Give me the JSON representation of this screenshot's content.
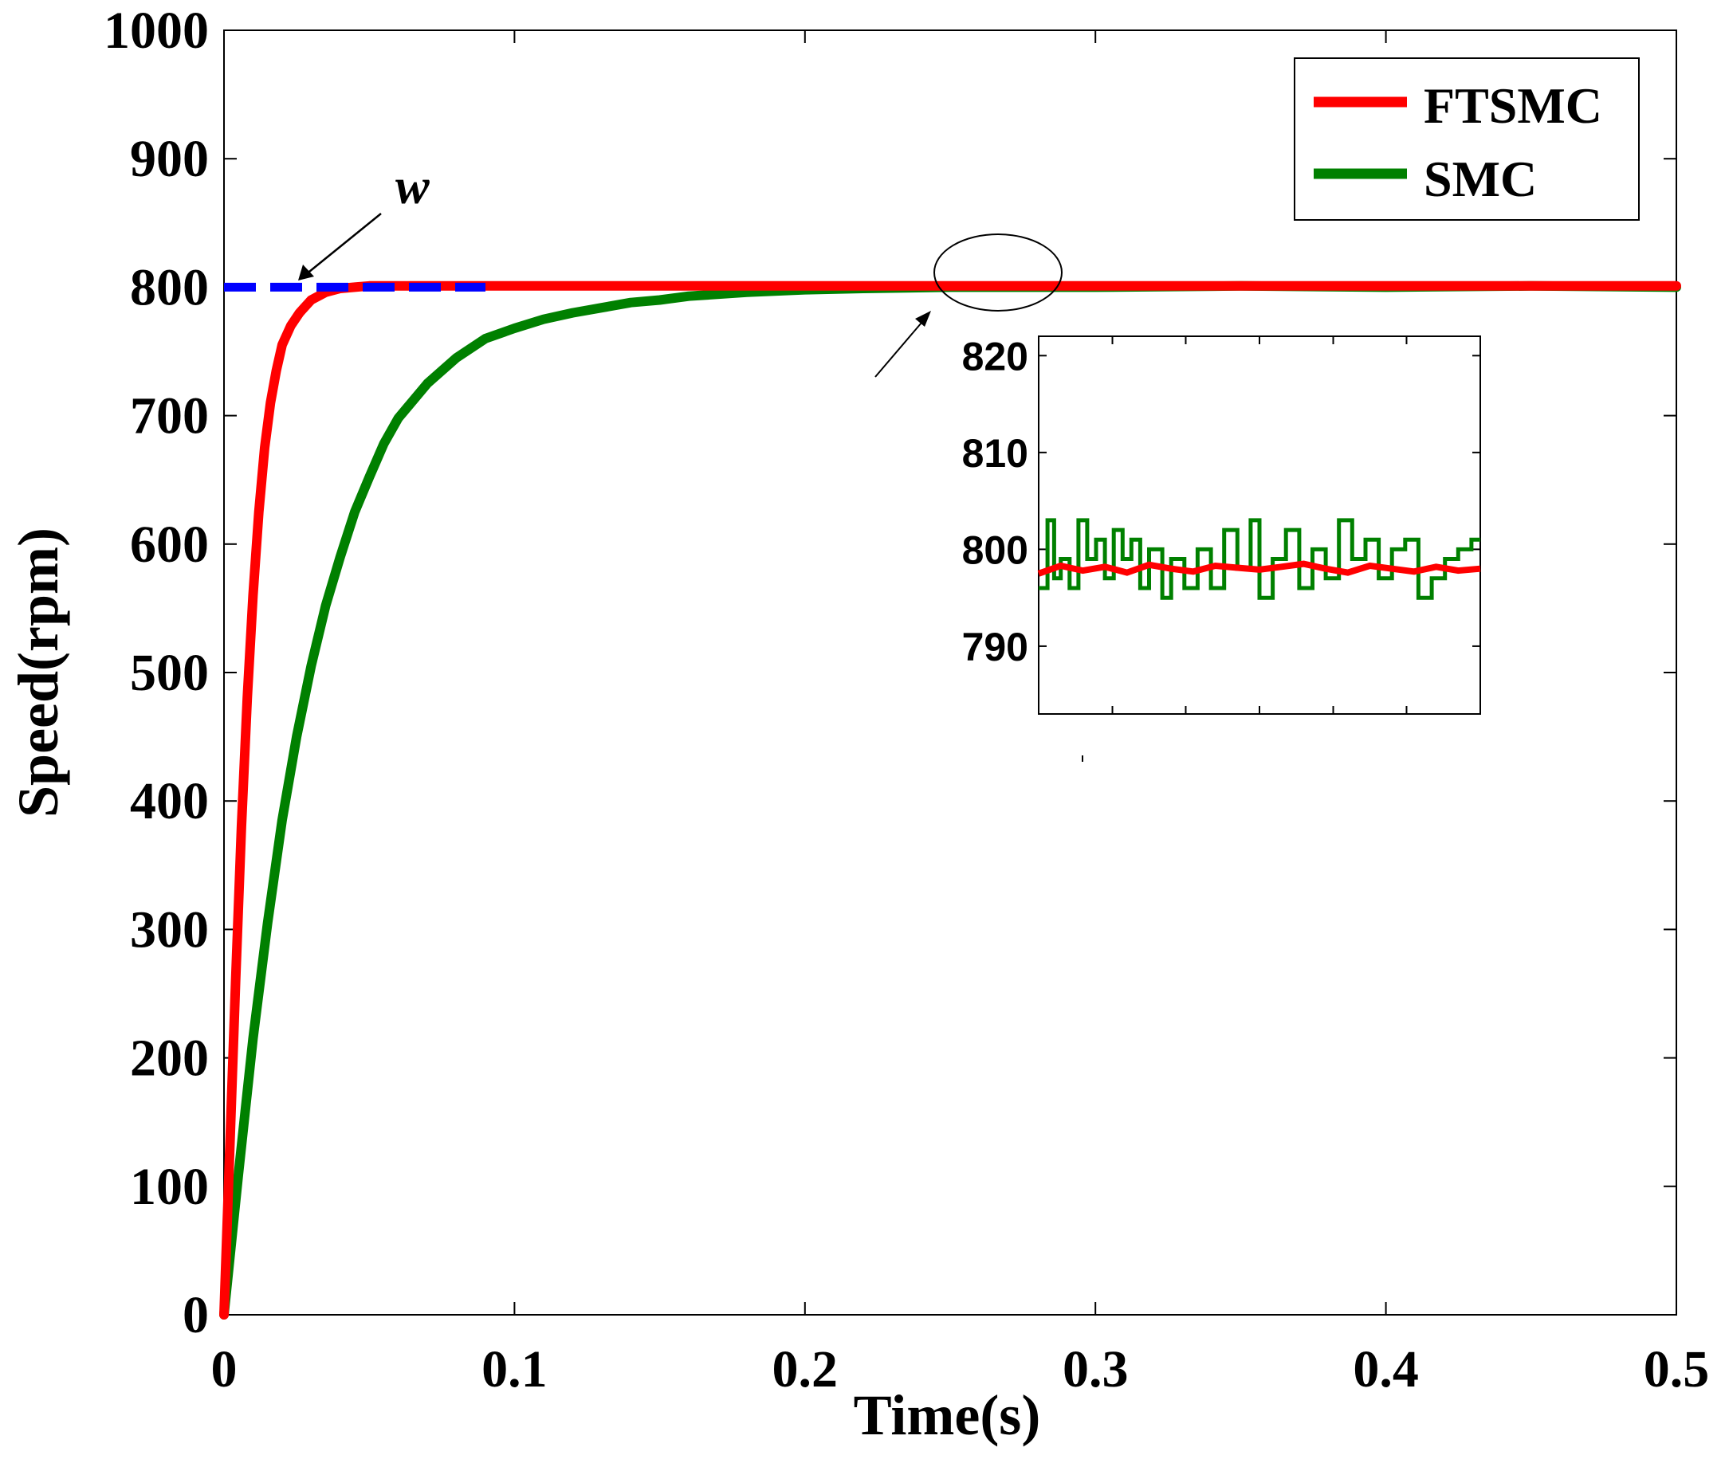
{
  "chart_data": {
    "type": "line",
    "xlabel": "Time(s)",
    "ylabel": "Speed(rpm)",
    "xlim": [
      0,
      0.5
    ],
    "ylim": [
      0,
      1000
    ],
    "xticks": [
      0,
      0.1,
      0.2,
      0.3,
      0.4,
      0.5
    ],
    "xtick_labels": [
      "0",
      "0.1",
      "0.2",
      "0.3",
      "0.4",
      "0.5"
    ],
    "yticks": [
      0,
      100,
      200,
      300,
      400,
      500,
      600,
      700,
      800,
      900,
      1000
    ],
    "ytick_labels": [
      "0",
      "100",
      "200",
      "300",
      "400",
      "500",
      "600",
      "700",
      "800",
      "900",
      "1000"
    ],
    "legend_position": "top-right",
    "series": [
      {
        "name": "FTSMC",
        "color": "#ff0000",
        "x": [
          0,
          0.002,
          0.004,
          0.006,
          0.008,
          0.01,
          0.012,
          0.014,
          0.016,
          0.018,
          0.02,
          0.023,
          0.026,
          0.03,
          0.035,
          0.04,
          0.045,
          0.05,
          0.06,
          0.08,
          0.1,
          0.15,
          0.2,
          0.25,
          0.3,
          0.35,
          0.4,
          0.45,
          0.5
        ],
        "y": [
          0,
          130,
          260,
          380,
          480,
          560,
          625,
          675,
          710,
          735,
          755,
          770,
          780,
          790,
          796,
          799,
          800,
          801,
          801,
          801,
          801,
          801,
          801,
          801,
          801,
          801,
          801,
          801,
          801
        ]
      },
      {
        "name": "SMC",
        "color": "#008000",
        "x": [
          0,
          0.005,
          0.01,
          0.015,
          0.02,
          0.025,
          0.03,
          0.035,
          0.04,
          0.045,
          0.05,
          0.055,
          0.06,
          0.07,
          0.08,
          0.09,
          0.1,
          0.11,
          0.12,
          0.13,
          0.14,
          0.15,
          0.16,
          0.18,
          0.2,
          0.22,
          0.25,
          0.3,
          0.35,
          0.4,
          0.45,
          0.5
        ],
        "y": [
          0,
          110,
          215,
          305,
          385,
          450,
          505,
          552,
          590,
          625,
          652,
          678,
          698,
          725,
          745,
          760,
          768,
          775,
          780,
          784,
          788,
          790,
          793,
          796,
          798,
          799,
          800,
          800,
          801,
          800,
          801,
          800
        ]
      },
      {
        "name": "w",
        "color": "#0000ff",
        "style": "dashed",
        "x": [
          0,
          0.09
        ],
        "y": [
          800,
          800
        ]
      }
    ],
    "annotations": [
      {
        "text": "w",
        "target_x": 0.025,
        "target_y": 800
      }
    ],
    "inset": {
      "ylim": [
        783,
        822
      ],
      "yticks": [
        790,
        800,
        810,
        820
      ],
      "ytick_labels": [
        "790",
        "800",
        "810",
        "820"
      ],
      "xlim": [
        0,
        1
      ],
      "xticks": [
        0.167,
        0.333,
        0.5,
        0.667,
        0.833
      ],
      "highlight": {
        "x": 0.268,
        "y": 802
      },
      "series": [
        {
          "name": "FTSMC",
          "color": "#ff0000",
          "x": [
            0,
            0.05,
            0.1,
            0.15,
            0.2,
            0.25,
            0.3,
            0.35,
            0.4,
            0.45,
            0.5,
            0.55,
            0.6,
            0.65,
            0.7,
            0.75,
            0.8,
            0.85,
            0.9,
            0.95,
            1.0
          ],
          "y": [
            797.5,
            798.3,
            797.8,
            798.2,
            797.6,
            798.4,
            798.0,
            797.7,
            798.3,
            798.1,
            797.9,
            798.2,
            798.5,
            798.0,
            797.6,
            798.3,
            798.0,
            797.7,
            798.2,
            797.8,
            798.0
          ]
        },
        {
          "name": "SMC",
          "color": "#008000",
          "x": [
            0,
            0.02,
            0.02,
            0.035,
            0.035,
            0.05,
            0.05,
            0.07,
            0.07,
            0.09,
            0.09,
            0.11,
            0.11,
            0.13,
            0.13,
            0.15,
            0.15,
            0.17,
            0.17,
            0.19,
            0.19,
            0.21,
            0.21,
            0.23,
            0.23,
            0.25,
            0.25,
            0.28,
            0.28,
            0.3,
            0.3,
            0.33,
            0.33,
            0.36,
            0.36,
            0.39,
            0.39,
            0.42,
            0.42,
            0.45,
            0.45,
            0.48,
            0.48,
            0.5,
            0.5,
            0.53,
            0.53,
            0.56,
            0.56,
            0.59,
            0.59,
            0.62,
            0.62,
            0.65,
            0.65,
            0.68,
            0.68,
            0.71,
            0.71,
            0.74,
            0.74,
            0.77,
            0.77,
            0.8,
            0.8,
            0.83,
            0.83,
            0.86,
            0.86,
            0.89,
            0.89,
            0.92,
            0.92,
            0.95,
            0.95,
            0.98,
            0.98,
            1.0
          ],
          "y": [
            796,
            796,
            803,
            803,
            797,
            797,
            799,
            799,
            796,
            796,
            803,
            803,
            799,
            799,
            801,
            801,
            797,
            797,
            802,
            802,
            799,
            799,
            801,
            801,
            796,
            796,
            800,
            800,
            795,
            795,
            799,
            799,
            796,
            796,
            800,
            800,
            796,
            796,
            802,
            802,
            798,
            798,
            803,
            803,
            795,
            795,
            799,
            799,
            802,
            802,
            796,
            796,
            800,
            800,
            797,
            797,
            803,
            803,
            799,
            799,
            801,
            801,
            797,
            797,
            800,
            800,
            801,
            801,
            795,
            795,
            797,
            797,
            799,
            799,
            800,
            800,
            801,
            801
          ]
        }
      ]
    }
  }
}
